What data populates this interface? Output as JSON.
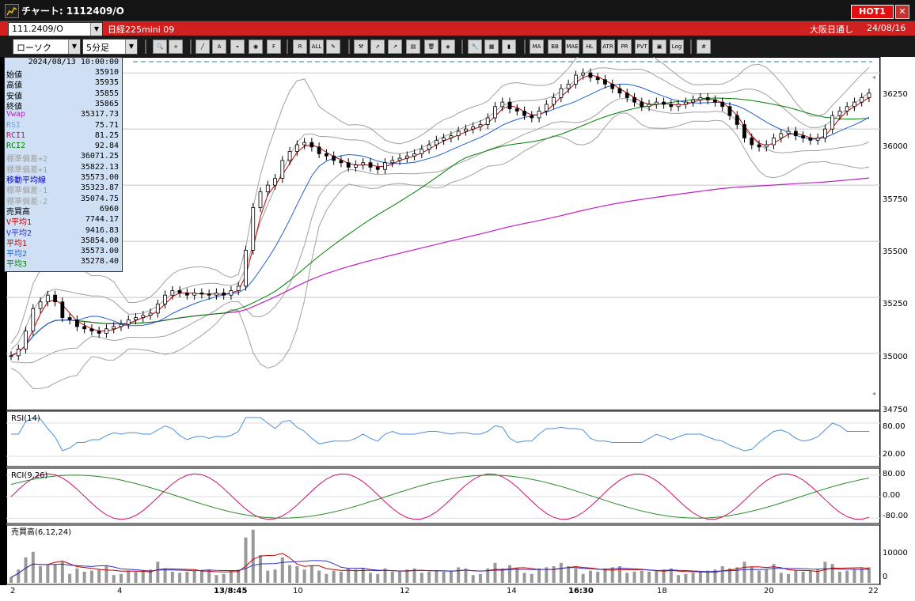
{
  "window": {
    "title": "チャート: 1112409/O",
    "hot_label": "HOT1",
    "close_label": "✕"
  },
  "infobar": {
    "symbol": "111.2409/O",
    "instrument": "日経225mini 09",
    "session": "大阪日通し",
    "date": "24/08/16"
  },
  "toolbar": {
    "chart_type": "ローソク",
    "interval": "5分足",
    "buttons": [
      "zoom",
      "crosshair",
      "line",
      "text",
      "cursor",
      "mark",
      "fib",
      "range",
      "all",
      "pen",
      "tool",
      "pointer",
      "arrow",
      "clipboard",
      "trash",
      "cube",
      "wrench",
      "color",
      "volume",
      "ma",
      "bb",
      "mae",
      "hl",
      "atr",
      "pr",
      "pvt",
      "frame",
      "log",
      "grid"
    ]
  },
  "info_panel": {
    "datetime": "2024/08/13 10:00:00",
    "rows": [
      {
        "label": "始値",
        "value": "35910",
        "color": "#000000"
      },
      {
        "label": "高値",
        "value": "35935",
        "color": "#000000"
      },
      {
        "label": "安値",
        "value": "35855",
        "color": "#000000"
      },
      {
        "label": "終値",
        "value": "35865",
        "color": "#000000"
      },
      {
        "label": "Vwap",
        "value": "35317.73",
        "color": "#c020c0"
      },
      {
        "label": "RSI",
        "value": "75.71",
        "color": "#6aa0e0"
      },
      {
        "label": "RCI1",
        "value": "81.25",
        "color": "#c01060"
      },
      {
        "label": "RCI2",
        "value": "92.84",
        "color": "#008000"
      },
      {
        "label": "標準偏差+2",
        "value": "36071.25",
        "color": "#a0a0a0"
      },
      {
        "label": "標準偏差+1",
        "value": "35822.13",
        "color": "#a0a0a0"
      },
      {
        "label": "移動平均線",
        "value": "35573.00",
        "color": "#0000c0"
      },
      {
        "label": "標準偏差-1",
        "value": "35323.87",
        "color": "#a0a0a0"
      },
      {
        "label": "標準偏差-2",
        "value": "35074.75",
        "color": "#a0a0a0"
      },
      {
        "label": "売買高",
        "value": "6960",
        "color": "#000000"
      },
      {
        "label": "V平均1",
        "value": "7744.17",
        "color": "#c00000"
      },
      {
        "label": "V平均2",
        "value": "9416.83",
        "color": "#3030c0"
      },
      {
        "label": "平均1",
        "value": "35854.00",
        "color": "#c00000"
      },
      {
        "label": "平均2",
        "value": "35573.00",
        "color": "#2060d0"
      },
      {
        "label": "平均3",
        "value": "35278.40",
        "color": "#008000"
      }
    ]
  },
  "panels": {
    "rsi_caption": "RSI(14)",
    "rci_caption": "RCI(9,26)",
    "vol_caption": "売買高(6,12,24)"
  },
  "price_axis": {
    "labels": [
      "36250",
      "36000",
      "35750",
      "35500",
      "35250",
      "35000",
      "34750"
    ]
  },
  "rsi_axis": {
    "labels": [
      "80.00",
      "20.00"
    ]
  },
  "rci_axis": {
    "labels": [
      "80.00",
      "0.00",
      "-80.00"
    ]
  },
  "vol_axis": {
    "labels": [
      "10000",
      "0"
    ]
  },
  "time_axis": {
    "labels": [
      "2",
      "4",
      "13/8:45",
      "10",
      "12",
      "14",
      "16:30",
      "18",
      "20",
      "22"
    ]
  },
  "colors": {
    "up": "#ffffff",
    "down": "#000000",
    "ma1": "#c00000",
    "ma2": "#2060d0",
    "ma3": "#008000",
    "vwap": "#c020c0",
    "bb": "#a0a0a0",
    "rsi": "#4a90d9",
    "rci1": "#d0106a",
    "rci2": "#2a8a2a"
  },
  "chart_data": {
    "type": "line",
    "series": [
      {
        "name": "RSI",
        "values": [
          75.71
        ]
      },
      {
        "name": "RCI1",
        "values": [
          81.25
        ]
      },
      {
        "name": "RCI2",
        "values": [
          92.84
        ]
      }
    ],
    "price_ylim": [
      34750,
      36300
    ],
    "rsi_ylim": [
      0,
      100
    ],
    "rci_ylim": [
      -100,
      100
    ],
    "close_path": [
      34990,
      35020,
      35100,
      35200,
      35230,
      35260,
      35230,
      35160,
      35150,
      35120,
      35110,
      35100,
      35090,
      35110,
      35120,
      35130,
      35150,
      35160,
      35170,
      35180,
      35220,
      35260,
      35280,
      35270,
      35260,
      35270,
      35265,
      35260,
      35270,
      35260,
      35280,
      35300,
      35460,
      35650,
      35720,
      35750,
      35780,
      35860,
      35900,
      35930,
      35940,
      35920,
      35890,
      35880,
      35860,
      35850,
      35830,
      35840,
      35850,
      35830,
      35820,
      35850,
      35860,
      35870,
      35880,
      35890,
      35910,
      35930,
      35950,
      35960,
      35970,
      35990,
      36000,
      36010,
      36020,
      36050,
      36100,
      36120,
      36090,
      36080,
      36060,
      36050,
      36080,
      36110,
      36140,
      36180,
      36200,
      36240,
      36250,
      36230,
      36220,
      36200,
      36180,
      36160,
      36140,
      36120,
      36100,
      36110,
      36120,
      36110,
      36100,
      36110,
      36120,
      36130,
      36140,
      36130,
      36120,
      36100,
      36060,
      36020,
      35960,
      35930,
      35920,
      35930,
      35960,
      35980,
      35990,
      35970,
      35960,
      35950,
      35960,
      36000,
      36060,
      36080,
      36100,
      36120,
      36140,
      36160
    ]
  }
}
